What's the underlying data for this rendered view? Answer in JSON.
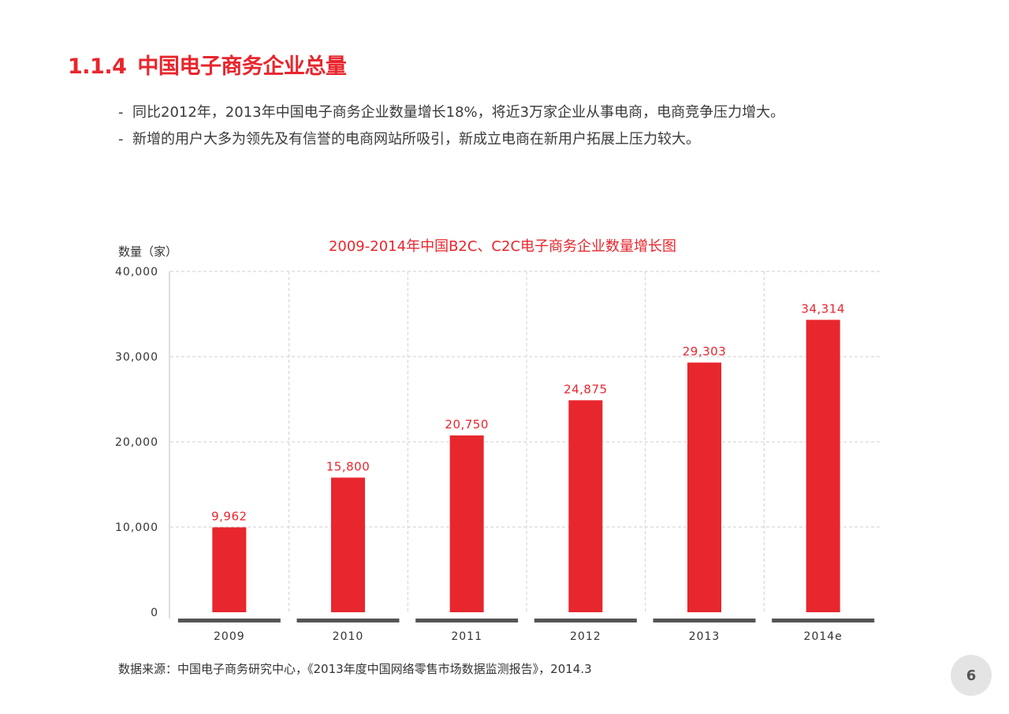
{
  "header": {
    "section_number": "1.1.4",
    "section_title": "中国电子商务企业总量"
  },
  "bullets": [
    "同比2012年，2013年中国电子商务企业数量增长18%，将近3万家企业从事电商，电商竞争压力增大。",
    "新增的用户大多为领先及有信誉的电商网站所吸引，新成立电商在新用户拓展上压力较大。"
  ],
  "bullet_marker": "-",
  "chart_data": {
    "type": "bar",
    "title": "2009-2014年中国B2C、C2C电子商务企业数量增长图",
    "xlabel": "",
    "ylabel": "数量（家）",
    "categories": [
      "2009",
      "2010",
      "2011",
      "2012",
      "2013",
      "2014e"
    ],
    "values": [
      9962,
      15800,
      20750,
      24875,
      29303,
      34314
    ],
    "data_labels": [
      "9,962",
      "15,800",
      "20,750",
      "24,875",
      "29,303",
      "34,314"
    ],
    "ylim": [
      0,
      40000
    ],
    "yticks": [
      0,
      10000,
      20000,
      30000,
      40000
    ],
    "ytick_labels": [
      "0",
      "10,000",
      "20,000",
      "30,000",
      "40,000"
    ],
    "grid": true,
    "bar_color": "#e8262d",
    "label_color": "#e8262d"
  },
  "source": "数据来源：中国电子商务研究中心，《2013年度中国网络零售市场数据监测报告》，2014.3",
  "page_number": "6",
  "colors": {
    "accent": "#e8262d",
    "text": "#333333",
    "baseline_segment": "#555555",
    "badge_bg": "#e4e4e4"
  }
}
